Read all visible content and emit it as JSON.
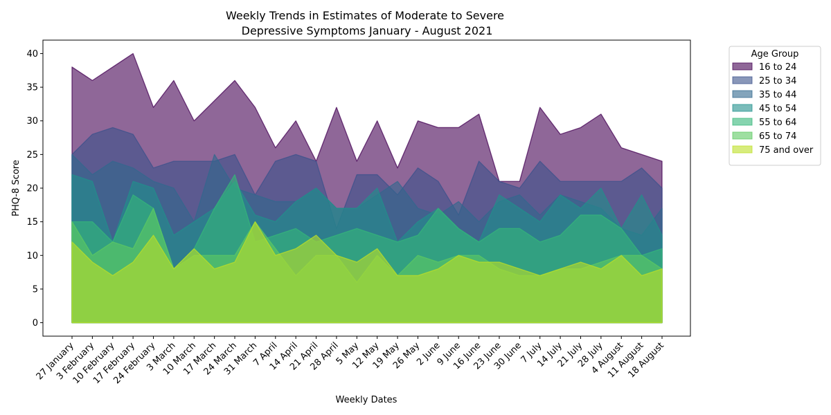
{
  "chart_data": {
    "type": "area",
    "title": [
      "Weekly Trends in Estimates of Moderate to Severe",
      "Depressive Symptoms January - August 2021"
    ],
    "xlabel": "Weekly Dates",
    "ylabel": "PHQ-8 Score",
    "ylim": [
      -2,
      42
    ],
    "yticks": [
      0,
      5,
      10,
      15,
      20,
      25,
      30,
      35,
      40
    ],
    "grid": false,
    "legend_title": "Age Group",
    "legend_position": "outside-top-right",
    "categories": [
      "27 January",
      "3 February",
      "10 February",
      "17 February",
      "24 February",
      "3 March",
      "10 March",
      "17 March",
      "24 March",
      "31 March",
      "7 April",
      "14 April",
      "21 April",
      "28 April",
      "5 May",
      "12 May",
      "19 May",
      "26 May",
      "2 June",
      "9 June",
      "16 June",
      "23 June",
      "30 June",
      "7 July",
      "14 July",
      "21 July",
      "28 July",
      "4 August",
      "11 August",
      "18 August"
    ],
    "series": [
      {
        "name": "16 to 24",
        "color": "#440154",
        "values": [
          38,
          36,
          38,
          40,
          32,
          36,
          30,
          33,
          36,
          32,
          26,
          30,
          24,
          32,
          24,
          30,
          23,
          30,
          29,
          29,
          31,
          21,
          21,
          32,
          28,
          29,
          31,
          26,
          25,
          24
        ]
      },
      {
        "name": "25 to 34",
        "color": "#3b528b",
        "values": [
          25,
          28,
          29,
          28,
          23,
          24,
          24,
          24,
          25,
          19,
          24,
          25,
          24,
          14,
          22,
          22,
          19,
          23,
          21,
          16,
          24,
          21,
          20,
          24,
          21,
          21,
          21,
          21,
          23,
          20
        ]
      },
      {
        "name": "35 to 44",
        "color": "#31688e",
        "values": [
          25,
          22,
          24,
          23,
          21,
          20,
          15,
          25,
          20,
          19,
          18,
          18,
          20,
          17,
          17,
          19,
          21,
          17,
          16,
          18,
          15,
          18,
          19,
          16,
          19,
          18,
          17,
          14,
          13,
          17
        ]
      },
      {
        "name": "45 to 54",
        "color": "#21908c",
        "values": [
          22,
          21,
          12,
          21,
          20,
          13,
          15,
          17,
          21,
          16,
          15,
          18,
          20,
          17,
          17,
          20,
          12,
          15,
          17,
          14,
          12,
          19,
          17,
          15,
          19,
          17,
          20,
          14,
          19,
          13
        ]
      },
      {
        "name": "55 to 64",
        "color": "#35b779",
        "values": [
          15,
          15,
          12,
          19,
          17,
          8,
          11,
          17,
          22,
          12,
          13,
          14,
          12,
          13,
          14,
          13,
          12,
          13,
          17,
          14,
          12,
          14,
          14,
          12,
          13,
          16,
          16,
          14,
          10,
          11
        ]
      },
      {
        "name": "65 to 74",
        "color": "#5ec962",
        "values": [
          15,
          10,
          12,
          11,
          17,
          8,
          10,
          10,
          10,
          15,
          11,
          7,
          10,
          10,
          6,
          10,
          7,
          10,
          9,
          10,
          10,
          8,
          7,
          7,
          8,
          8,
          9,
          10,
          10,
          8
        ]
      },
      {
        "name": "75 and over",
        "color": "#bddf26",
        "values": [
          12,
          9,
          7,
          9,
          13,
          8,
          11,
          8,
          9,
          15,
          10,
          11,
          13,
          10,
          9,
          11,
          7,
          7,
          8,
          10,
          9,
          9,
          8,
          7,
          8,
          9,
          8,
          10,
          7,
          8
        ]
      }
    ]
  }
}
